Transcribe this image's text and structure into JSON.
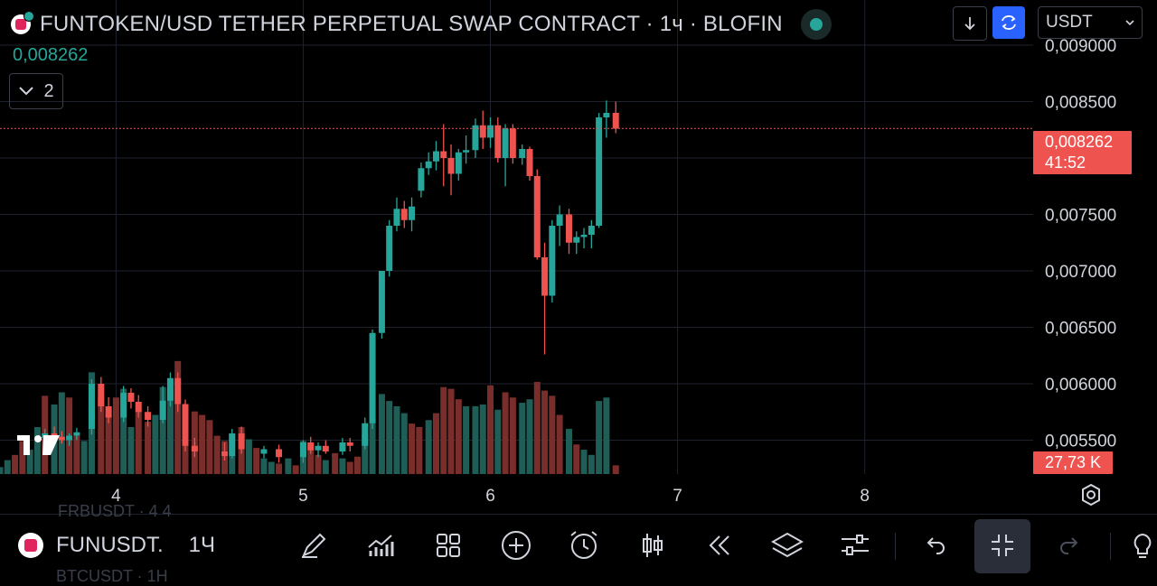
{
  "header": {
    "title": "FUNTOKEN/USD TETHER PERPETUAL SWAP CONTRACT · 1ч · BLOFIN",
    "last_value": "0,008262",
    "collapse_count": "2",
    "currency": "USDT"
  },
  "bottom_bar": {
    "symbol": "FUNUSDT.",
    "timeframe": "1Ч",
    "ghost_rows": [
      "FRBUSDT · 4 4",
      "BTCUSDT · 1Н"
    ],
    "tools": [
      "drawing-pen-icon",
      "indicators-icon",
      "layouts-icon",
      "add-icon",
      "alert-icon",
      "candle-style-icon",
      "replay-icon",
      "layers-icon",
      "settings-sliders-icon",
      "undo-icon",
      "fullscreen-exit-icon",
      "redo-icon",
      "lightbulb-icon"
    ]
  },
  "colors": {
    "up": "#26a69a",
    "down": "#ef5350",
    "up_volume": "#1f5e56",
    "down_volume": "#7a2e2b",
    "price_line": "#ef5350",
    "grid": "#1e222d",
    "background": "#000000"
  },
  "chart_data": {
    "type": "candlestick",
    "title": "FUNTOKEN/USD TETHER PERPETUAL SWAP CONTRACT · 1ч · BLOFIN",
    "x_tick_labels": [
      "4",
      "5",
      "6",
      "7",
      "8"
    ],
    "y_tick_labels": [
      "0,009000",
      "0,008500",
      "0,008000",
      "0,007500",
      "0,007000",
      "0,006500",
      "0,006000",
      "0,005500"
    ],
    "y_ticks": [
      0.009,
      0.0085,
      0.008,
      0.0075,
      0.007,
      0.0065,
      0.006,
      0.0055
    ],
    "ylim": [
      0.0052,
      0.0094
    ],
    "x_range_days": [
      3.38,
      8.9
    ],
    "last_price_label": "0,008262",
    "countdown_label": "41:52",
    "last_price": 0.008262,
    "volume_label": "27,73 K",
    "candles_visible_from_day": 5.7,
    "candles": [
      {
        "x": 5.63,
        "o": 0.00771,
        "h": 0.00796,
        "l": 0.00765,
        "c": 0.00791
      },
      {
        "x": 5.67,
        "o": 0.00791,
        "h": 0.00805,
        "l": 0.00785,
        "c": 0.00797
      },
      {
        "x": 5.71,
        "o": 0.00797,
        "h": 0.00815,
        "l": 0.00789,
        "c": 0.00806
      },
      {
        "x": 5.75,
        "o": 0.00806,
        "h": 0.0083,
        "l": 0.00775,
        "c": 0.008
      },
      {
        "x": 5.79,
        "o": 0.008,
        "h": 0.00812,
        "l": 0.00767,
        "c": 0.00786
      },
      {
        "x": 5.83,
        "o": 0.00786,
        "h": 0.00808,
        "l": 0.0078,
        "c": 0.00805
      },
      {
        "x": 5.87,
        "o": 0.00805,
        "h": 0.0082,
        "l": 0.00795,
        "c": 0.00807
      },
      {
        "x": 5.92,
        "o": 0.00807,
        "h": 0.00835,
        "l": 0.008,
        "c": 0.00829
      },
      {
        "x": 5.96,
        "o": 0.00829,
        "h": 0.00842,
        "l": 0.00808,
        "c": 0.00818
      },
      {
        "x": 6.0,
        "o": 0.00818,
        "h": 0.00836,
        "l": 0.00809,
        "c": 0.00829
      },
      {
        "x": 6.04,
        "o": 0.00829,
        "h": 0.00836,
        "l": 0.00796,
        "c": 0.008
      },
      {
        "x": 6.08,
        "o": 0.008,
        "h": 0.0083,
        "l": 0.00775,
        "c": 0.00826
      },
      {
        "x": 6.12,
        "o": 0.00826,
        "h": 0.0083,
        "l": 0.00795,
        "c": 0.008
      },
      {
        "x": 6.17,
        "o": 0.008,
        "h": 0.00812,
        "l": 0.00794,
        "c": 0.00808
      },
      {
        "x": 6.21,
        "o": 0.00808,
        "h": 0.0081,
        "l": 0.0078,
        "c": 0.00784
      },
      {
        "x": 6.25,
        "o": 0.00784,
        "h": 0.0079,
        "l": 0.0071,
        "c": 0.00712
      },
      {
        "x": 6.29,
        "o": 0.00712,
        "h": 0.00725,
        "l": 0.00626,
        "c": 0.00678
      },
      {
        "x": 6.33,
        "o": 0.00678,
        "h": 0.00745,
        "l": 0.00672,
        "c": 0.0074
      },
      {
        "x": 6.37,
        "o": 0.0074,
        "h": 0.00758,
        "l": 0.00722,
        "c": 0.0075
      },
      {
        "x": 6.42,
        "o": 0.0075,
        "h": 0.00755,
        "l": 0.00715,
        "c": 0.00725
      },
      {
        "x": 6.46,
        "o": 0.00725,
        "h": 0.00735,
        "l": 0.00715,
        "c": 0.0073
      },
      {
        "x": 6.5,
        "o": 0.0073,
        "h": 0.00738,
        "l": 0.0072,
        "c": 0.00732
      },
      {
        "x": 6.54,
        "o": 0.00732,
        "h": 0.00745,
        "l": 0.0072,
        "c": 0.0074
      },
      {
        "x": 6.58,
        "o": 0.0074,
        "h": 0.0084,
        "l": 0.00738,
        "c": 0.00836
      },
      {
        "x": 6.62,
        "o": 0.00836,
        "h": 0.00851,
        "l": 0.00818,
        "c": 0.0084
      },
      {
        "x": 6.67,
        "o": 0.0084,
        "h": 0.0085,
        "l": 0.00822,
        "c": 0.00826
      }
    ],
    "volume_scale_max": 135,
    "volumes": [
      [
        3.38,
        8,
        1
      ],
      [
        3.42,
        16,
        1
      ],
      [
        3.46,
        22,
        0
      ],
      [
        3.5,
        38,
        0
      ],
      [
        3.54,
        28,
        1
      ],
      [
        3.58,
        54,
        1
      ],
      [
        3.62,
        90,
        0
      ],
      [
        3.67,
        80,
        1
      ],
      [
        3.71,
        94,
        1
      ],
      [
        3.75,
        88,
        0
      ],
      [
        3.79,
        44,
        0
      ],
      [
        3.83,
        38,
        1
      ],
      [
        3.87,
        117,
        1
      ],
      [
        3.92,
        90,
        0
      ],
      [
        3.96,
        70,
        0
      ],
      [
        4.0,
        88,
        0
      ],
      [
        4.04,
        98,
        1
      ],
      [
        4.08,
        54,
        1
      ],
      [
        4.12,
        72,
        0
      ],
      [
        4.17,
        60,
        0
      ],
      [
        4.21,
        68,
        1
      ],
      [
        4.25,
        100,
        1
      ],
      [
        4.29,
        96,
        1
      ],
      [
        4.33,
        130,
        0
      ],
      [
        4.37,
        76,
        0
      ],
      [
        4.42,
        72,
        0
      ],
      [
        4.46,
        68,
        0
      ],
      [
        4.5,
        62,
        0
      ],
      [
        4.54,
        44,
        0
      ],
      [
        4.58,
        38,
        0
      ],
      [
        4.62,
        46,
        1
      ],
      [
        4.67,
        54,
        0
      ],
      [
        4.71,
        40,
        1
      ],
      [
        4.75,
        30,
        0
      ],
      [
        4.79,
        18,
        1
      ],
      [
        4.83,
        14,
        1
      ],
      [
        4.87,
        12,
        0
      ],
      [
        4.92,
        18,
        1
      ],
      [
        4.96,
        10,
        0
      ],
      [
        5.0,
        38,
        1
      ],
      [
        5.04,
        34,
        0
      ],
      [
        5.08,
        22,
        0
      ],
      [
        5.12,
        16,
        1
      ],
      [
        5.17,
        24,
        0
      ],
      [
        5.21,
        18,
        1
      ],
      [
        5.25,
        14,
        0
      ],
      [
        5.29,
        20,
        0
      ],
      [
        5.33,
        46,
        1
      ],
      [
        5.37,
        62,
        1
      ],
      [
        5.42,
        92,
        1
      ],
      [
        5.46,
        84,
        1
      ],
      [
        5.5,
        78,
        1
      ],
      [
        5.54,
        70,
        1
      ],
      [
        5.58,
        58,
        0
      ],
      [
        5.62,
        54,
        0
      ],
      [
        5.67,
        62,
        1
      ],
      [
        5.71,
        70,
        0
      ],
      [
        5.75,
        100,
        0
      ],
      [
        5.79,
        98,
        0
      ],
      [
        5.83,
        86,
        0
      ],
      [
        5.87,
        78,
        1
      ],
      [
        5.92,
        78,
        1
      ],
      [
        5.96,
        80,
        1
      ],
      [
        6.0,
        102,
        0
      ],
      [
        6.04,
        74,
        1
      ],
      [
        6.08,
        94,
        0
      ],
      [
        6.12,
        88,
        0
      ],
      [
        6.17,
        82,
        1
      ],
      [
        6.21,
        86,
        1
      ],
      [
        6.25,
        106,
        0
      ],
      [
        6.29,
        96,
        0
      ],
      [
        6.33,
        90,
        0
      ],
      [
        6.37,
        68,
        0
      ],
      [
        6.42,
        52,
        1
      ],
      [
        6.46,
        34,
        0
      ],
      [
        6.5,
        28,
        1
      ],
      [
        6.54,
        22,
        1
      ],
      [
        6.58,
        84,
        1
      ],
      [
        6.62,
        88,
        1
      ],
      [
        6.67,
        10,
        0
      ]
    ]
  }
}
